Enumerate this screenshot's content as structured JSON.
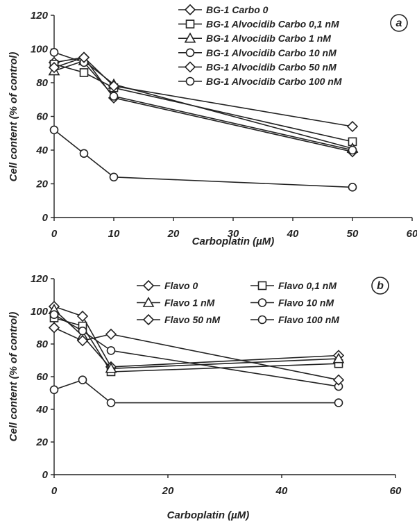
{
  "chart_data": [
    {
      "panel": "a",
      "type": "line",
      "xlabel": "Carboplatin (µM)",
      "ylabel": "Cell content (% of control)",
      "xlim": [
        0,
        60
      ],
      "ylim": [
        0,
        120
      ],
      "xticks": [
        0,
        10,
        20,
        30,
        40,
        50,
        60
      ],
      "yticks": [
        0,
        20,
        40,
        60,
        80,
        100,
        120
      ],
      "grid": false,
      "legend_position": "top-right",
      "x": [
        0,
        5,
        10,
        50
      ],
      "series": [
        {
          "name": "BG-1 Carbo 0",
          "marker": "diamond",
          "values": [
            92,
            95,
            71,
            39
          ]
        },
        {
          "name": "BG-1 Alvocidib Carbo 0,1 nM",
          "marker": "square",
          "values": [
            91,
            86,
            77,
            45
          ]
        },
        {
          "name": "BG-1 Alvocidib Carbo 1 nM",
          "marker": "triangle",
          "values": [
            87,
            93,
            79,
            41
          ]
        },
        {
          "name": "BG-1 Alvocidib Carbo 10 nM",
          "marker": "circle",
          "values": [
            98,
            92,
            72,
            40
          ]
        },
        {
          "name": "BG-1 Alvocidib Carbo 50 nM",
          "marker": "diamond",
          "values": [
            89,
            95,
            78,
            54
          ]
        },
        {
          "name": "BG-1 Alvocidib Carbo 100 nM",
          "marker": "circle",
          "values": [
            52,
            38,
            24,
            18
          ]
        }
      ]
    },
    {
      "panel": "b",
      "type": "line",
      "xlabel": "Carboplatin (µM)",
      "ylabel": "Cell content (% of control)",
      "xlim": [
        0,
        60
      ],
      "ylim": [
        0,
        120
      ],
      "xticks": [
        0,
        20,
        40,
        60
      ],
      "yticks": [
        0,
        20,
        40,
        60,
        80,
        100,
        120
      ],
      "grid": false,
      "legend_position": "top-right",
      "x": [
        0,
        5,
        10,
        50
      ],
      "series": [
        {
          "name": "Flavo 0",
          "marker": "diamond",
          "values": [
            103,
            97,
            66,
            73
          ]
        },
        {
          "name": "Flavo 0,1 nM",
          "marker": "square",
          "values": [
            96,
            91,
            63,
            68
          ]
        },
        {
          "name": "Flavo 1 nM",
          "marker": "triangle",
          "values": [
            101,
            85,
            65,
            71
          ]
        },
        {
          "name": "Flavo 10 nM",
          "marker": "circle",
          "values": [
            98,
            88,
            76,
            54
          ]
        },
        {
          "name": "Flavo 50 nM",
          "marker": "diamond",
          "values": [
            90,
            82,
            86,
            58
          ]
        },
        {
          "name": "Flavo 100 nM",
          "marker": "circle",
          "values": [
            52,
            58,
            44,
            44
          ]
        }
      ]
    }
  ]
}
